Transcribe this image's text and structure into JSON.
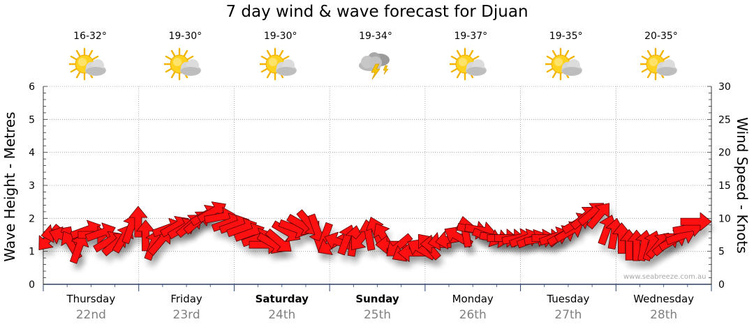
{
  "chart_data": {
    "type": "line",
    "title": "7 day wind & wave forecast for Djuan",
    "y_left_label": "Wave Height - Metres",
    "y_right_label": "Wind Speed - Knots",
    "y_left_range": [
      0,
      6
    ],
    "y_right_range": [
      0,
      30
    ],
    "y_left_ticks": [
      "0",
      "1",
      "2",
      "3",
      "4",
      "5",
      "6"
    ],
    "y_right_ticks": [
      "0",
      "5",
      "10",
      "15",
      "20",
      "25",
      "30"
    ],
    "grid": true,
    "days": [
      {
        "name": "Thursday",
        "date": "22nd",
        "temp": "16-32°",
        "icon": "sun-cloud-icon",
        "bold": false
      },
      {
        "name": "Friday",
        "date": "23rd",
        "temp": "19-30°",
        "icon": "sun-cloud-icon",
        "bold": false
      },
      {
        "name": "Saturday",
        "date": "24th",
        "temp": "19-30°",
        "icon": "sun-cloud-icon",
        "bold": true
      },
      {
        "name": "Sunday",
        "date": "25th",
        "temp": "19-34°",
        "icon": "storm-cloud-icon",
        "bold": true
      },
      {
        "name": "Monday",
        "date": "26th",
        "temp": "19-37°",
        "icon": "sun-cloud-icon",
        "bold": false
      },
      {
        "name": "Tuesday",
        "date": "27th",
        "temp": "19-35°",
        "icon": "sun-cloud-icon",
        "bold": false
      },
      {
        "name": "Wednesday",
        "date": "28th",
        "temp": "20-35°",
        "icon": "sun-cloud-icon",
        "bold": false
      }
    ],
    "series": [
      {
        "name": "Wind Speed",
        "unit": "knots",
        "values": [
          7,
          7.8,
          7.2,
          6,
          5.5,
          8.2,
          7.5,
          7.8,
          6.5,
          6.2,
          7,
          8.5,
          9.5,
          7.4,
          6,
          6.5,
          8.5,
          8.8,
          8.5,
          9,
          9.5,
          10.5,
          11,
          10.2,
          9.3,
          9,
          8.5,
          7.8,
          7,
          6,
          6.2,
          6.5,
          8,
          8.5,
          9,
          9.2,
          8.3,
          7,
          6,
          6.4,
          6.8,
          6.6,
          7,
          7.5,
          8,
          7.2,
          6,
          5.8,
          5,
          4.8,
          5.3,
          5.8,
          6.1,
          6.6,
          6.8,
          7.2,
          8,
          8.3,
          8.2,
          7.2,
          7,
          7,
          7,
          7,
          6.9,
          6.8,
          6.9,
          7,
          7.2,
          7.4,
          8,
          9.3,
          10.2,
          10.8,
          10.5,
          8.3,
          7.7,
          7,
          6,
          5.9,
          5.9,
          5.9,
          6,
          6.2,
          6.7,
          7.3,
          8.5,
          9.5
        ]
      }
    ],
    "wind_direction_deg": [
      40,
      80,
      110,
      150,
      200,
      250,
      270,
      250,
      240,
      230,
      210,
      200,
      180,
      180,
      200,
      220,
      250,
      240,
      240,
      230,
      230,
      240,
      240,
      260,
      250,
      250,
      250,
      250,
      250,
      270,
      300,
      310,
      300,
      290,
      300,
      320,
      340,
      20,
      60,
      110,
      200,
      190,
      40,
      170,
      160,
      150,
      90,
      50,
      60,
      90,
      120,
      140,
      90,
      80,
      80,
      120,
      170,
      280,
      280,
      290,
      280,
      270,
      270,
      260,
      250,
      250,
      260,
      270,
      250,
      240,
      240,
      240,
      230,
      230,
      220,
      200,
      190,
      180,
      180,
      180,
      190,
      200,
      220,
      230,
      240,
      250,
      260,
      270
    ],
    "watermark": "www.seabreeze.com.au"
  }
}
